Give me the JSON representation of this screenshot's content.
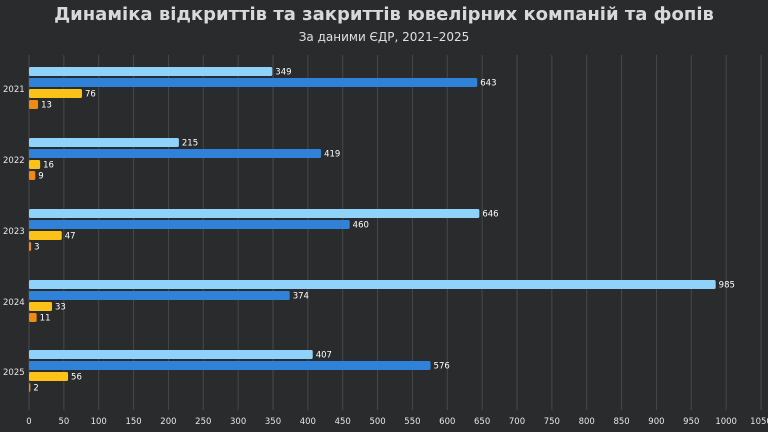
{
  "title": "Динаміка відкриттів та закриттів ювелірних компаній та фопів",
  "subtitle": "За даними ЄДР, 2021–2025",
  "colors": {
    "background": "#2a2b2d",
    "grid": "#474849",
    "text": "#e6e6e6"
  },
  "chart_data": {
    "type": "bar",
    "orientation": "horizontal",
    "categories": [
      "2021",
      "2022",
      "2023",
      "2024",
      "2025"
    ],
    "series": [
      {
        "color": "#8fd3fb",
        "values": [
          349,
          215,
          646,
          985,
          407
        ]
      },
      {
        "color": "#2f82d8",
        "values": [
          643,
          419,
          460,
          374,
          576
        ]
      },
      {
        "color": "#fbc317",
        "values": [
          76,
          16,
          47,
          33,
          56
        ]
      },
      {
        "color": "#f08a12",
        "values": [
          13,
          9,
          3,
          11,
          2
        ]
      }
    ],
    "xlim": [
      0,
      1050
    ],
    "xticks": [
      0,
      50,
      100,
      150,
      200,
      250,
      300,
      350,
      400,
      450,
      500,
      550,
      600,
      650,
      700,
      750,
      800,
      850,
      900,
      950,
      1000,
      1050
    ],
    "grid": true,
    "legend": "none"
  }
}
